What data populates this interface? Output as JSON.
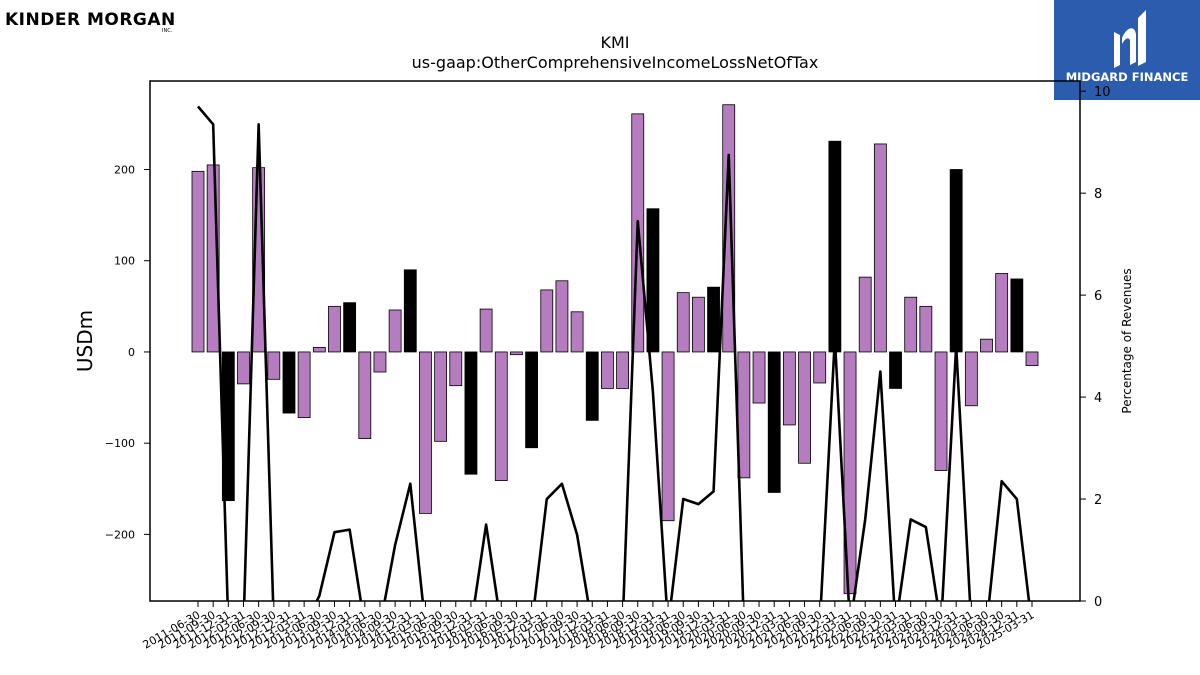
{
  "header": {
    "company_logo_text": "KINDER MORGAN",
    "company_logo_suffix": "INC.",
    "brand_logo_text": "MIDGARD FINANCE"
  },
  "colors": {
    "bar_positive_default": "#b57cbf",
    "bar_highlight": "#000000",
    "line": "#000000",
    "brand_blue": "#2b5cae"
  },
  "chart_data": {
    "type": "bar",
    "title": "KMI",
    "subtitle": "us-gaap:OtherComprehensiveIncomeLossNetOfTax",
    "ylabel": "USDm",
    "y2label": "Percentage of Revenues",
    "ylim": [
      -273,
      297
    ],
    "y2lim": [
      0,
      10.2
    ],
    "yticks": [
      -200,
      -100,
      0,
      100,
      200
    ],
    "y2ticks": [
      0,
      2,
      4,
      6,
      8,
      10
    ],
    "grid": false,
    "categories": [
      "2011-06-30",
      "2011-09-30",
      "2011-12-31",
      "2012-03-31",
      "2012-06-30",
      "2012-09-30",
      "2012-12-31",
      "2013-03-31",
      "2013-06-30",
      "2013-09-30",
      "2013-12-31",
      "2014-03-31",
      "2014-06-30",
      "2014-09-30",
      "2014-12-31",
      "2015-03-31",
      "2015-06-30",
      "2015-09-30",
      "2015-12-31",
      "2016-03-31",
      "2016-06-30",
      "2016-09-30",
      "2016-12-31",
      "2017-03-31",
      "2017-06-30",
      "2017-09-30",
      "2017-12-31",
      "2018-03-31",
      "2018-06-30",
      "2018-09-30",
      "2018-12-31",
      "2019-03-31",
      "2019-06-30",
      "2019-09-30",
      "2019-12-31",
      "2020-03-31",
      "2020-06-30",
      "2020-09-30",
      "2020-12-31",
      "2021-03-31",
      "2021-06-30",
      "2021-09-30",
      "2021-12-31",
      "2022-03-31",
      "2022-06-30",
      "2022-09-30",
      "2022-12-31",
      "2023-03-31",
      "2023-06-30",
      "2023-09-30",
      "2023-12-31",
      "2024-03-31",
      "2024-06-30",
      "2024-09-30",
      "2024-12-31",
      "2025-03-31"
    ],
    "xtick_labels": [
      "2011-06-30",
      "2011-09-30",
      "2011-12-31",
      "2012-03-31",
      "2012-06-30",
      "2012-09-30",
      "2012-12-31",
      "2013-03-31",
      "2013-06-30",
      "2013-09-30",
      "2013-12-31",
      "2014-03-31",
      "2014-06-30",
      "2014-09-30",
      "2014-12-31",
      "2015-03-31",
      "2015-06-30",
      "2015-09-30",
      "2015-12-31",
      "2016-03-31",
      "2016-06-30",
      "2016-09-30",
      "2016-12-31",
      "2017-03-31",
      "2017-06-30",
      "2017-09-30",
      "2017-12-31",
      "2018-03-31",
      "2018-06-30",
      "2018-09-30",
      "2018-12-31",
      "2019-03-31",
      "2019-06-30",
      "2019-09-30",
      "2019-12-31",
      "2020-03-31",
      "2020-06-30",
      "2020-09-30",
      "2020-12-31",
      "2021-03-31",
      "2021-06-30",
      "2021-09-30",
      "2021-12-31",
      "2022-03-31",
      "2022-06-30",
      "2022-09-30",
      "2022-12-31",
      "2023-03-31",
      "2023-06-30",
      "2023-09-30",
      "2023-12-31",
      "2024-03-31",
      "2024-06-30",
      "2024-09-30",
      "2024-12-31",
      "2025-03-31"
    ],
    "values": [
      198,
      205,
      -163,
      -35,
      202,
      -30,
      -67,
      -72,
      5,
      50,
      54,
      -95,
      -22,
      46,
      90,
      -177,
      -98,
      -37,
      -134,
      47,
      -141,
      -3,
      -105,
      68,
      78,
      44,
      -75,
      -40,
      -40,
      261,
      157,
      -185,
      65,
      60,
      71,
      271,
      -138,
      -56,
      -154,
      -80,
      -122,
      -34,
      231,
      -265,
      82,
      228,
      -40,
      60,
      50,
      -130,
      200,
      -59,
      14,
      86,
      80,
      -15
    ],
    "highlight": [
      false,
      false,
      true,
      false,
      false,
      false,
      true,
      false,
      false,
      false,
      true,
      false,
      false,
      false,
      true,
      false,
      false,
      false,
      true,
      false,
      false,
      false,
      true,
      false,
      false,
      false,
      true,
      false,
      false,
      false,
      true,
      false,
      false,
      false,
      true,
      false,
      false,
      false,
      true,
      false,
      false,
      false,
      true,
      false,
      false,
      false,
      true,
      false,
      false,
      false,
      true,
      false,
      false,
      false,
      true,
      false
    ],
    "line_series": {
      "axis": "right",
      "values": [
        9.7,
        9.35,
        -0.5,
        -0.5,
        9.35,
        -0.5,
        -0.5,
        -0.5,
        0.1,
        1.35,
        1.4,
        -0.5,
        -0.5,
        1.1,
        2.3,
        -0.5,
        -0.5,
        -0.5,
        -0.5,
        1.5,
        -0.5,
        -0.5,
        -0.5,
        2.0,
        2.3,
        1.3,
        -0.5,
        -0.5,
        -0.5,
        7.45,
        4.1,
        -0.5,
        2.0,
        1.9,
        2.15,
        8.75,
        -0.5,
        -0.5,
        -0.5,
        -0.5,
        -0.5,
        -0.5,
        5.15,
        -0.5,
        1.6,
        4.5,
        -0.5,
        1.6,
        1.45,
        -0.5,
        5.0,
        -0.5,
        -0.5,
        2.35,
        2.0,
        -0.5
      ]
    }
  }
}
